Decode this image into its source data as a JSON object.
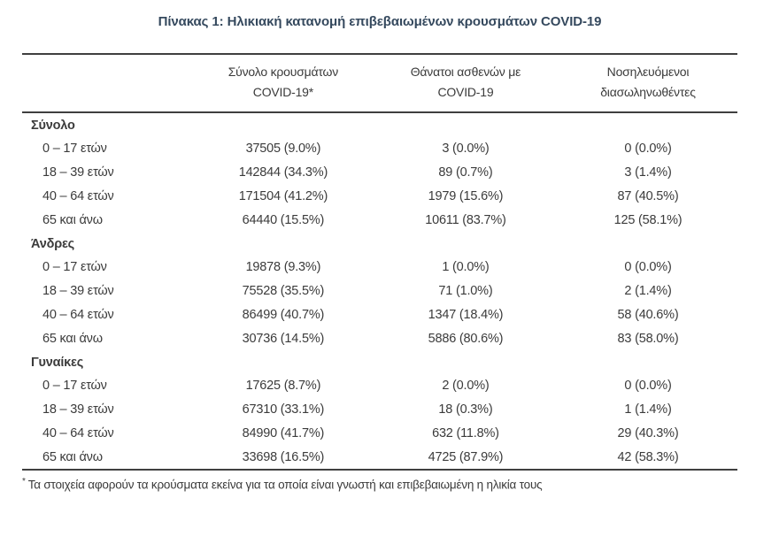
{
  "title": "Πίνακας 1: Ηλικιακή κατανομή επιβεβαιωμένων κρουσμάτων COVID-19",
  "table": {
    "columns": [
      {
        "line1": "Σύνολο κρουσμάτων",
        "line2": "COVID-19*"
      },
      {
        "line1": "Θάνατοι ασθενών με",
        "line2": "COVID-19"
      },
      {
        "line1": "Νοσηλευόμενοι",
        "line2": "διασωληνωθέντες"
      }
    ],
    "sections": [
      {
        "label": "Σύνολο",
        "rows": [
          {
            "age": "0 – 17 ετών",
            "cases": "37505 (9.0%)",
            "deaths": "3 (0.0%)",
            "intubated": "0 (0.0%)"
          },
          {
            "age": "18 – 39 ετών",
            "cases": "142844 (34.3%)",
            "deaths": "89 (0.7%)",
            "intubated": "3 (1.4%)"
          },
          {
            "age": "40 – 64 ετών",
            "cases": "171504 (41.2%)",
            "deaths": "1979 (15.6%)",
            "intubated": "87 (40.5%)"
          },
          {
            "age": "65 και άνω",
            "cases": "64440 (15.5%)",
            "deaths": "10611 (83.7%)",
            "intubated": "125 (58.1%)"
          }
        ]
      },
      {
        "label": "Άνδρες",
        "rows": [
          {
            "age": "0 – 17 ετών",
            "cases": "19878 (9.3%)",
            "deaths": "1 (0.0%)",
            "intubated": "0 (0.0%)"
          },
          {
            "age": "18 – 39 ετών",
            "cases": "75528 (35.5%)",
            "deaths": "71 (1.0%)",
            "intubated": "2 (1.4%)"
          },
          {
            "age": "40 – 64 ετών",
            "cases": "86499 (40.7%)",
            "deaths": "1347 (18.4%)",
            "intubated": "58 (40.6%)"
          },
          {
            "age": "65 και άνω",
            "cases": "30736 (14.5%)",
            "deaths": "5886 (80.6%)",
            "intubated": "83 (58.0%)"
          }
        ]
      },
      {
        "label": "Γυναίκες",
        "rows": [
          {
            "age": "0 – 17 ετών",
            "cases": "17625 (8.7%)",
            "deaths": "2 (0.0%)",
            "intubated": "0 (0.0%)"
          },
          {
            "age": "18 – 39 ετών",
            "cases": "67310 (33.1%)",
            "deaths": "18 (0.3%)",
            "intubated": "1 (1.4%)"
          },
          {
            "age": "40 – 64 ετών",
            "cases": "84990 (41.7%)",
            "deaths": "632 (11.8%)",
            "intubated": "29 (40.3%)"
          },
          {
            "age": "65 και άνω",
            "cases": "33698 (16.5%)",
            "deaths": "4725 (87.9%)",
            "intubated": "42 (58.3%)"
          }
        ]
      }
    ]
  },
  "footnote": {
    "marker": "*",
    "text": "Τα στοιχεία αφορούν τα κρούσματα εκείνα για τα οποία είναι γνωστή και επιβεβαιωμένη η ηλικία τους"
  },
  "colors": {
    "title": "#35495e",
    "body_text": "#3b3b3b",
    "rule": "#3f3f3f"
  }
}
